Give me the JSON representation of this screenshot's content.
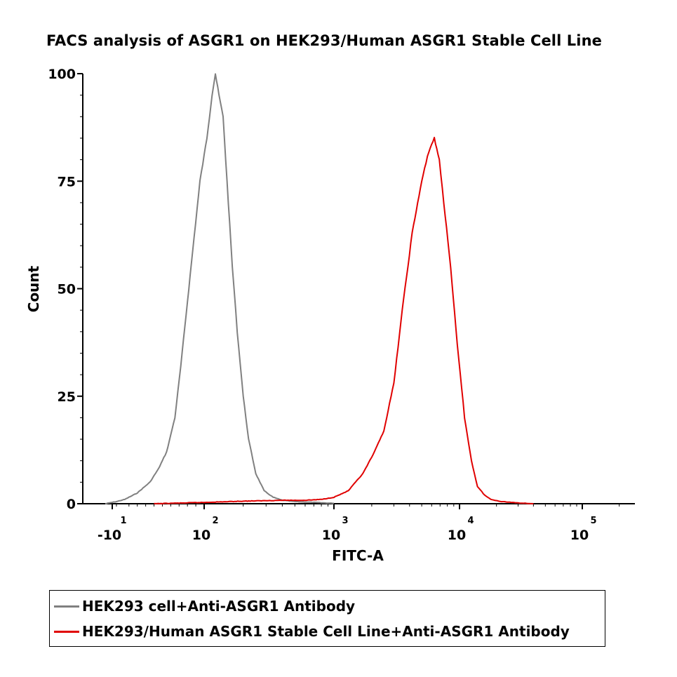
{
  "chart_data": {
    "type": "line",
    "title": "FACS analysis of ASGR1 on HEK293/Human ASGR1 Stable Cell Line",
    "xlabel": "FITC-A",
    "ylabel": "Count",
    "xscale": "biexponential (log above 10^2)",
    "ylim": [
      0,
      100
    ],
    "y_ticks": [
      0,
      25,
      50,
      75,
      100
    ],
    "x_ticks": [
      {
        "base": "-10",
        "exp": "1",
        "pos": -10
      },
      {
        "base": "10",
        "exp": "2",
        "pos": 100
      },
      {
        "base": "10",
        "exp": "3",
        "pos": 1000
      },
      {
        "base": "10",
        "exp": "4",
        "pos": 10000
      },
      {
        "base": "10",
        "exp": "5",
        "pos": 100000
      }
    ],
    "grid": false,
    "legend_position": "bottom",
    "series": [
      {
        "name": "HEK293 cell+Anti-ASGR1 Antibody",
        "color": "#808080",
        "points": [
          [
            -12,
            0
          ],
          [
            -5,
            0.5
          ],
          [
            5,
            1
          ],
          [
            20,
            2.5
          ],
          [
            35,
            5
          ],
          [
            45,
            8
          ],
          [
            55,
            12
          ],
          [
            65,
            20
          ],
          [
            72,
            32
          ],
          [
            80,
            47
          ],
          [
            88,
            62
          ],
          [
            95,
            75
          ],
          [
            105,
            85
          ],
          [
            115,
            95
          ],
          [
            122,
            100
          ],
          [
            130,
            95
          ],
          [
            140,
            90
          ],
          [
            150,
            75
          ],
          [
            165,
            55
          ],
          [
            180,
            40
          ],
          [
            200,
            25
          ],
          [
            220,
            15
          ],
          [
            250,
            7
          ],
          [
            290,
            3
          ],
          [
            340,
            1.5
          ],
          [
            400,
            0.8
          ],
          [
            500,
            0.5
          ],
          [
            700,
            0.3
          ],
          [
            1000,
            0.1
          ]
        ]
      },
      {
        "name": "HEK293/Human ASGR1 Stable Cell Line+Anti-ASGR1 Antibody",
        "color": "#e00000",
        "points": [
          [
            40,
            0
          ],
          [
            100,
            0.3
          ],
          [
            200,
            0.6
          ],
          [
            400,
            0.8
          ],
          [
            600,
            0.8
          ],
          [
            800,
            1
          ],
          [
            1000,
            1.5
          ],
          [
            1300,
            3
          ],
          [
            1700,
            7
          ],
          [
            2100,
            12
          ],
          [
            2500,
            17
          ],
          [
            3000,
            28
          ],
          [
            3500,
            45
          ],
          [
            4200,
            63
          ],
          [
            5000,
            75
          ],
          [
            5700,
            82
          ],
          [
            6300,
            85
          ],
          [
            6900,
            80
          ],
          [
            7500,
            70
          ],
          [
            8500,
            55
          ],
          [
            9600,
            37
          ],
          [
            11000,
            20
          ],
          [
            12500,
            10
          ],
          [
            14000,
            4
          ],
          [
            16000,
            2
          ],
          [
            18000,
            1
          ],
          [
            22000,
            0.5
          ],
          [
            30000,
            0.2
          ],
          [
            40000,
            0
          ]
        ]
      }
    ]
  }
}
